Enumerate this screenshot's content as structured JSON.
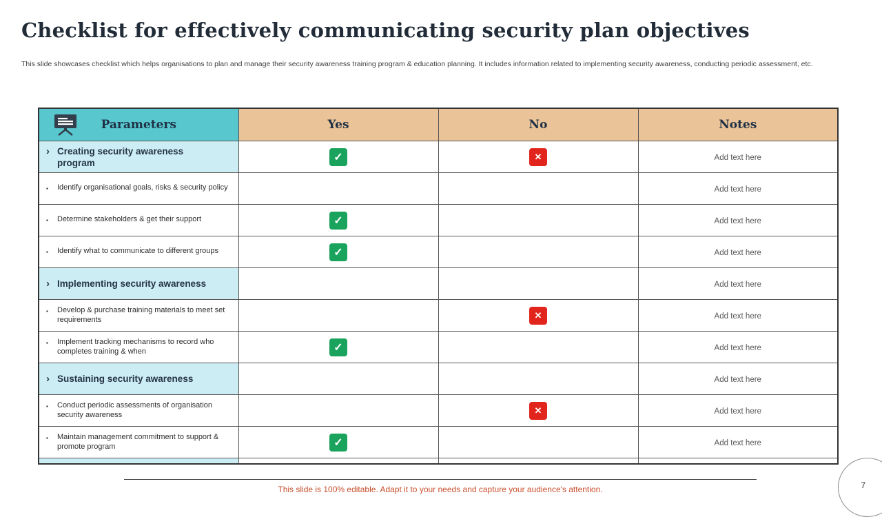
{
  "slide": {
    "title": "Checklist for effectively communicating security plan objectives",
    "subtitle": "This slide showcases checklist which helps organisations to plan and manage their security awareness training program & education planning. It includes information related to implementing security awareness, conducting periodic assessment, etc.",
    "footer_note": "This slide is 100% editable. Adapt it to your needs and capture your audience's attention.",
    "page_number": "7"
  },
  "icons": {
    "chevron": "›",
    "bullet": "▪",
    "check": "✓",
    "cross": "✕",
    "header_icon": "presentation-board-icon"
  },
  "colors": {
    "parameters_header_teal": "#58C7CE",
    "yes_no_notes_header_tan": "#EAC398",
    "section_row_cyan": "#CDEDF4",
    "check_green": "#1AA35C",
    "cross_red": "#E2251C",
    "footer_text_red": "#C94F2E"
  },
  "table": {
    "headers": {
      "parameters": "Parameters",
      "yes": "Yes",
      "no": "No",
      "notes": "Notes"
    },
    "rows": [
      {
        "type": "section",
        "label": "Creating security awareness program",
        "yes": true,
        "no": true,
        "notes": "Add text here"
      },
      {
        "type": "item",
        "label": "Identify organisational goals, risks & security policy",
        "yes": false,
        "no": false,
        "notes": "Add text here"
      },
      {
        "type": "item",
        "label": "Determine stakeholders & get their support",
        "yes": true,
        "no": false,
        "notes": "Add text here"
      },
      {
        "type": "item",
        "label": "Identify what to communicate to different groups",
        "yes": true,
        "no": false,
        "notes": "Add text here"
      },
      {
        "type": "section",
        "label": "Implementing security awareness",
        "yes": false,
        "no": false,
        "notes": "Add text here"
      },
      {
        "type": "item",
        "label": "Develop & purchase training materials to meet set requirements",
        "yes": false,
        "no": true,
        "notes": "Add text here"
      },
      {
        "type": "item",
        "label": "Implement tracking mechanisms to record who completes training & when",
        "yes": true,
        "no": false,
        "notes": "Add text here"
      },
      {
        "type": "section",
        "label": "Sustaining security awareness",
        "yes": false,
        "no": false,
        "notes": "Add text here"
      },
      {
        "type": "item",
        "label": "Conduct periodic assessments of organisation security awareness",
        "yes": false,
        "no": true,
        "notes": "Add text here"
      },
      {
        "type": "item",
        "label": "Maintain management commitment to support & promote program",
        "yes": true,
        "no": false,
        "notes": "Add text here"
      }
    ]
  }
}
